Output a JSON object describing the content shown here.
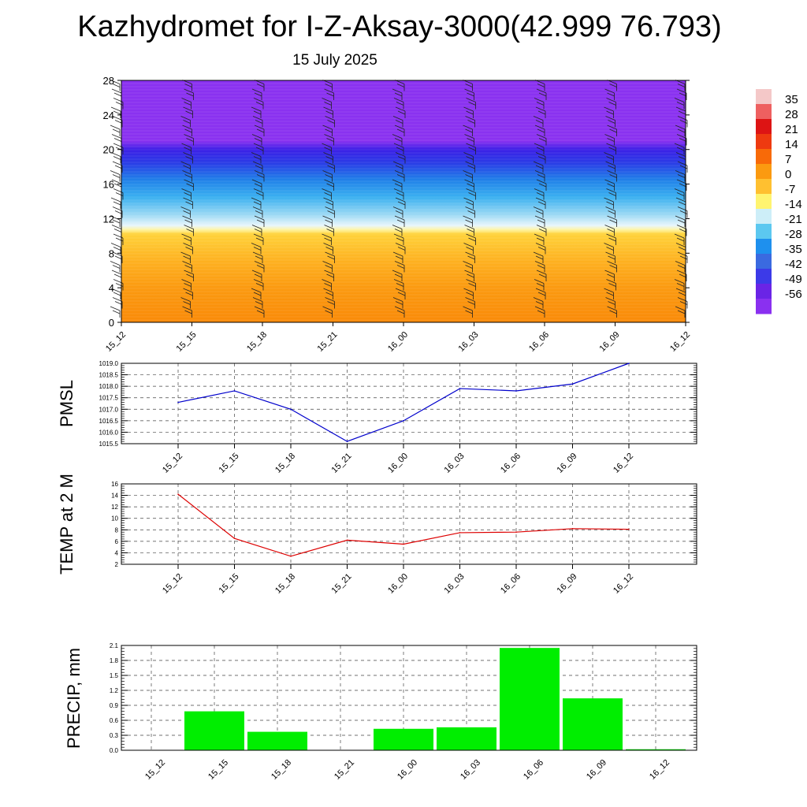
{
  "title": "Kazhydromet for I-Z-Aksay-3000(42.999 76.793)",
  "subtitle": "15 July 2025",
  "chart_data": [
    {
      "type": "heatmap",
      "name": "vertical-profile",
      "x_ticks": [
        "15_12",
        "15_15",
        "15_18",
        "15_21",
        "16_00",
        "16_03",
        "16_06",
        "16_09",
        "16_12"
      ],
      "y_ticks": [
        0,
        4,
        8,
        12,
        16,
        20,
        24,
        28
      ],
      "ylim": [
        0,
        28
      ],
      "colorbar_labels": [
        "35",
        "28",
        "21",
        "14",
        "7",
        "0",
        "-7",
        "-14",
        "-21",
        "-28",
        "-35",
        "-42",
        "-49",
        "-56"
      ],
      "colorbar_colors": [
        "#f4c8c8",
        "#ee6060",
        "#dd1414",
        "#ee3a10",
        "#f86a08",
        "#fb9a10",
        "#ffc030",
        "#fff470",
        "#cdeef8",
        "#5cc8f0",
        "#1e90ee",
        "#3a6ae0",
        "#3c3ae8",
        "#6a24e6",
        "#8a30f0"
      ],
      "profile_stops": [
        {
          "h": 0,
          "color": "#f98a08"
        },
        {
          "h": 4,
          "color": "#fb9a10"
        },
        {
          "h": 7,
          "color": "#feb020"
        },
        {
          "h": 10.2,
          "color": "#ffd23a"
        },
        {
          "h": 10.7,
          "color": "#fff4a0"
        },
        {
          "h": 11.2,
          "color": "#e8f6fc"
        },
        {
          "h": 12.5,
          "color": "#9ad8f4"
        },
        {
          "h": 14.5,
          "color": "#3ab0f0"
        },
        {
          "h": 16.5,
          "color": "#2080e8"
        },
        {
          "h": 18.5,
          "color": "#2a3ae6"
        },
        {
          "h": 20,
          "color": "#3c20e6"
        },
        {
          "h": 21,
          "color": "#8a32f0"
        },
        {
          "h": 28,
          "color": "#8a32f0"
        }
      ]
    },
    {
      "type": "line",
      "name": "pmsl",
      "ylabel": "PMSL",
      "x": [
        "15_12",
        "15_15",
        "15_18",
        "15_21",
        "16_00",
        "16_03",
        "16_06",
        "16_09",
        "16_12"
      ],
      "y_ticks": [
        "1015.5",
        "1016.0",
        "1016.5",
        "1017.0",
        "1017.5",
        "1018.0",
        "1018.5",
        "1019.0"
      ],
      "ylim": [
        1015.5,
        1019.0
      ],
      "series": [
        {
          "values": [
            1017.3,
            1017.8,
            1017.0,
            1015.6,
            1016.5,
            1017.9,
            1017.8,
            1018.1,
            1019.0
          ],
          "color": "#0000cc"
        }
      ],
      "grid": true
    },
    {
      "type": "line",
      "name": "temp",
      "ylabel": "TEMP at 2 M",
      "x": [
        "15_12",
        "15_15",
        "15_18",
        "15_21",
        "16_00",
        "16_03",
        "16_06",
        "16_09",
        "16_12"
      ],
      "y_ticks": [
        "2",
        "4",
        "6",
        "8",
        "10",
        "12",
        "14",
        "16"
      ],
      "ylim": [
        2,
        16
      ],
      "series": [
        {
          "values": [
            14.2,
            6.5,
            3.4,
            6.2,
            5.5,
            7.5,
            7.6,
            8.2,
            8.1
          ],
          "color": "#dd0000"
        }
      ],
      "grid": true
    },
    {
      "type": "bar",
      "name": "precip",
      "ylabel": "PRECIP, mm",
      "categories": [
        "15_12",
        "15_15",
        "15_18",
        "15_21",
        "16_00",
        "16_03",
        "16_06",
        "16_09",
        "16_12"
      ],
      "values": [
        0,
        0.78,
        0.37,
        0,
        0.43,
        0.46,
        2.05,
        1.04,
        0.02
      ],
      "y_ticks": [
        "0.0",
        "0.3",
        "0.6",
        "0.9",
        "1.2",
        "1.5",
        "1.8",
        "2.1"
      ],
      "ylim": [
        0,
        2.1
      ],
      "bar_color": "#00ee00",
      "grid": true
    }
  ]
}
